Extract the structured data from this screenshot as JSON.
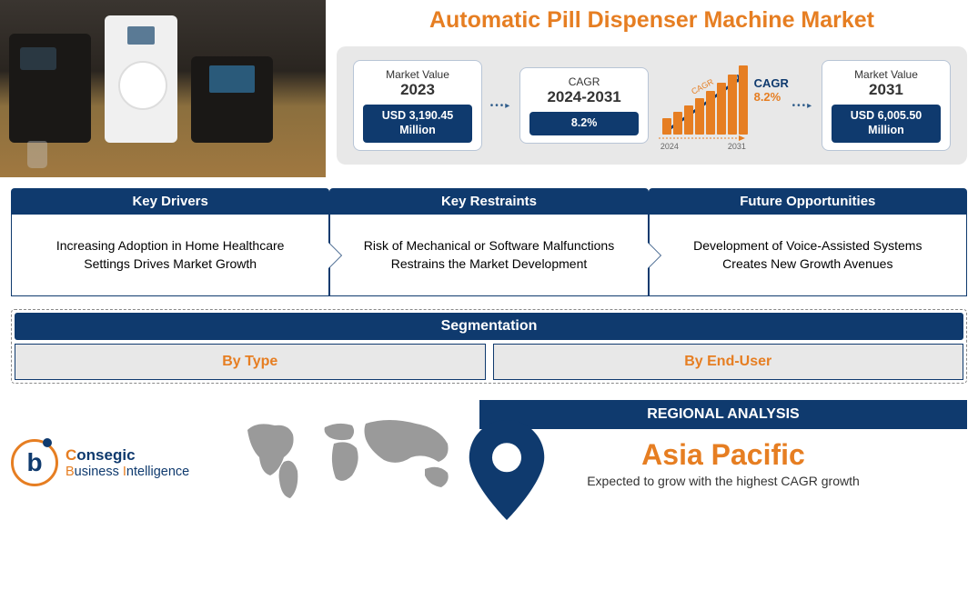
{
  "colors": {
    "accent_orange": "#e67e22",
    "brand_navy": "#0f3a6e",
    "box_bg": "#e8e8e8",
    "card_border": "#b8c5d6",
    "map_fill": "#9a9a9a"
  },
  "title": "Automatic Pill Dispenser Machine Market",
  "stats": {
    "market_2023": {
      "label": "Market Value",
      "year": "2023",
      "value": "USD 3,190.45 Million",
      "value_bg": "#0f3a6e"
    },
    "cagr": {
      "label": "CAGR",
      "year": "2024-2031",
      "value": "8.2%",
      "value_bg": "#0f3a6e"
    },
    "growth_chart": {
      "label_curve": "CAGR",
      "cagr_label": "CAGR",
      "cagr_value": "8.2%",
      "cagr_value_color": "#e67e22",
      "year_start": "2024",
      "year_end": "2031",
      "bars": [
        18,
        25,
        32,
        40,
        48,
        57,
        66,
        76
      ],
      "bar_color": "#e67e22",
      "arrow_color": "#0f3a6e"
    },
    "market_2031": {
      "label": "Market Value",
      "year": "2031",
      "value": "USD 6,005.50 Million",
      "value_bg": "#0f3a6e"
    }
  },
  "cards": [
    {
      "head": "Key Drivers",
      "body": "Increasing Adoption in Home Healthcare Settings Drives Market Growth"
    },
    {
      "head": "Key Restraints",
      "body": "Risk of Mechanical or Software Malfunctions Restrains the Market Development"
    },
    {
      "head": "Future Opportunities",
      "body": "Development of Voice-Assisted Systems Creates New Growth Avenues"
    }
  ],
  "segmentation": {
    "head": "Segmentation",
    "cells": [
      "By Type",
      "By End-User"
    ]
  },
  "logo": {
    "glyph": "b",
    "word_orange": "C",
    "word_rest1": "onsegic",
    "word_orange2": "B",
    "word_rest2": "usiness ",
    "word_orange3": "I",
    "word_rest3": "ntelligence"
  },
  "regional": {
    "head": "REGIONAL ANALYSIS",
    "name": "Asia Pacific",
    "sub": "Expected to grow with the highest CAGR growth"
  }
}
